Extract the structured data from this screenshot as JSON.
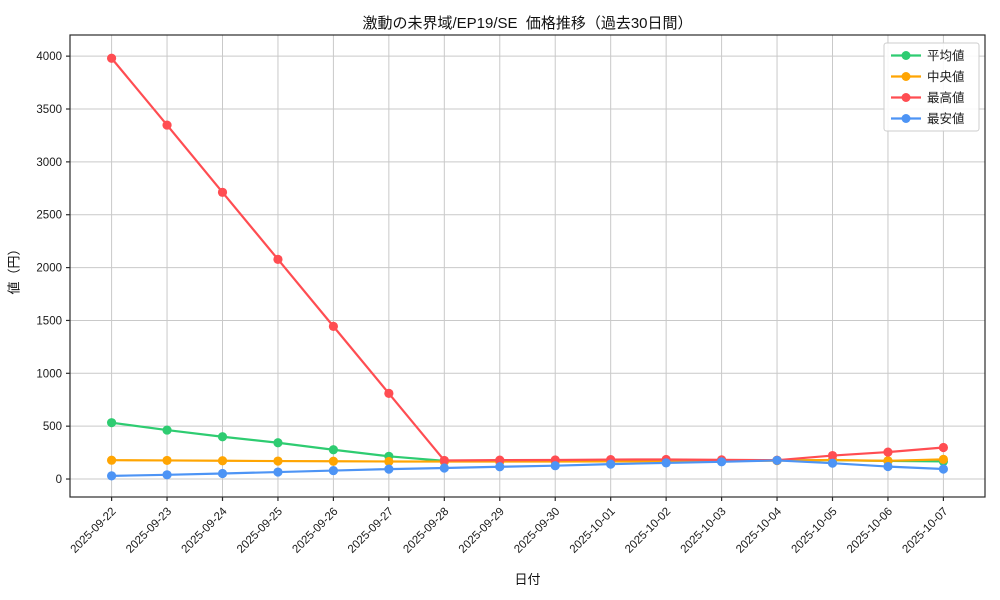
{
  "figure": {
    "title": "激動の未界域/EP19/SE  価格推移（過去30日間）",
    "xlabel": "日付",
    "ylabel": "値（円）"
  },
  "chart_data": {
    "type": "line",
    "title": "激動の未界域/EP19/SE  価格推移（過去30日間）",
    "xlabel": "日付",
    "ylabel": "値（円）",
    "categories": [
      "2025-09-22",
      "2025-09-23",
      "2025-09-24",
      "2025-09-25",
      "2025-09-26",
      "2025-09-27",
      "2025-09-28",
      "2025-09-29",
      "2025-09-30",
      "2025-10-01",
      "2025-10-02",
      "2025-10-03",
      "2025-10-04",
      "2025-10-05",
      "2025-10-06",
      "2025-10-07"
    ],
    "series": [
      {
        "key": "avg",
        "name": "平均値",
        "color": "#2ecc71",
        "values": [
          533,
          463,
          400,
          343,
          277,
          215,
          172,
          173,
          174,
          175,
          176,
          176,
          177,
          178,
          171,
          167
        ]
      },
      {
        "key": "median",
        "name": "中央値",
        "color": "#ffa502",
        "values": [
          178,
          176,
          173,
          170,
          168,
          166,
          165,
          165,
          166,
          167,
          168,
          170,
          174,
          180,
          172,
          186
        ]
      },
      {
        "key": "max",
        "name": "最高値",
        "color": "#ff4d52",
        "values": [
          3980,
          3348,
          2712,
          2078,
          1444,
          810,
          176,
          179,
          180,
          184,
          185,
          181,
          178,
          222,
          255,
          298
        ]
      },
      {
        "key": "min",
        "name": "最安値",
        "color": "#4d94f5",
        "values": [
          30,
          40,
          52,
          66,
          80,
          94,
          104,
          116,
          126,
          141,
          153,
          163,
          176,
          150,
          118,
          95
        ]
      }
    ],
    "ylim": [
      -170,
      4200
    ],
    "yticks": [
      0,
      500,
      1000,
      1500,
      2000,
      2500,
      3000,
      3500,
      4000
    ],
    "grid": true,
    "grid_color": "#c9c9c9",
    "legend_position": "upper right",
    "marker": "circle",
    "x_tick_rotation": 45
  }
}
